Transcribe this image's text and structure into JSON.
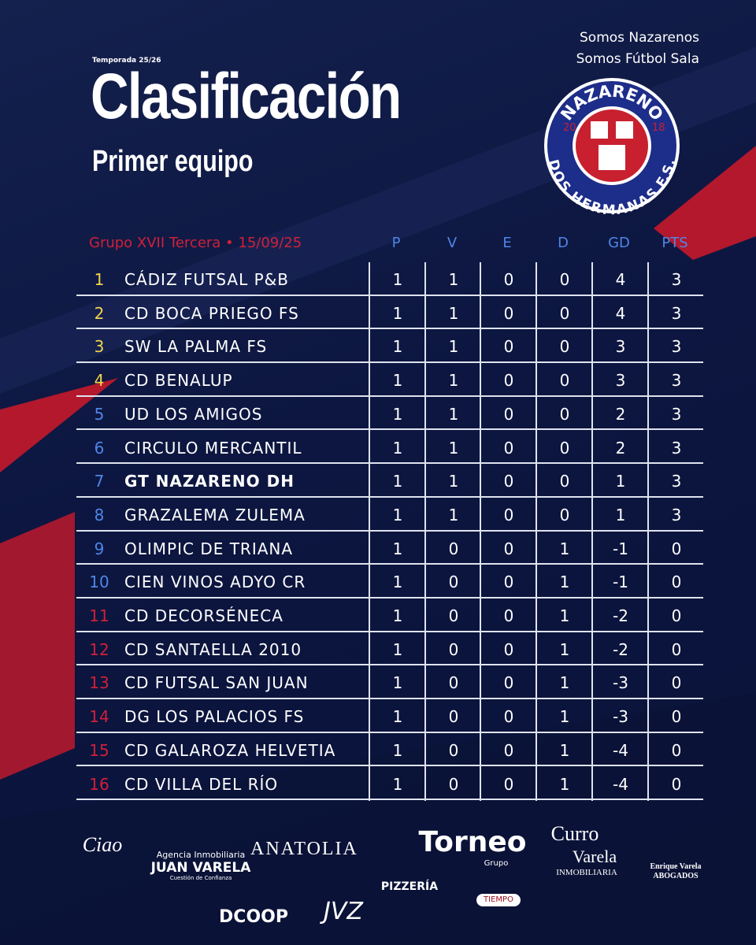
{
  "header": {
    "season": "Temporada 25/26",
    "title": "Clasificación",
    "subtitle": "Primer equipo",
    "slogan": [
      "Somos Nazarenos",
      "Somos Fútbol Sala"
    ]
  },
  "logo": {
    "top": "NAZARENO",
    "bottom": "DOS HERMANAS F.S.",
    "left": "20",
    "right": "18"
  },
  "table": {
    "caption": "Grupo XVII Tercera • 15/09/25",
    "columns": [
      "P",
      "V",
      "E",
      "D",
      "GD",
      "PTS"
    ],
    "rows": [
      [
        1,
        "CÁDIZ FUTSAL P&B",
        1,
        1,
        0,
        0,
        4,
        3
      ],
      [
        2,
        "CD BOCA PRIEGO FS",
        1,
        1,
        0,
        0,
        4,
        3
      ],
      [
        3,
        "SW LA PALMA FS",
        1,
        1,
        0,
        0,
        3,
        3
      ],
      [
        4,
        "CD BENALUP",
        1,
        1,
        0,
        0,
        3,
        3
      ],
      [
        5,
        "UD LOS AMIGOS",
        1,
        1,
        0,
        0,
        2,
        3
      ],
      [
        6,
        "CIRCULO MERCANTIL",
        1,
        1,
        0,
        0,
        2,
        3
      ],
      [
        7,
        "GT NAZARENO DH",
        1,
        1,
        0,
        0,
        1,
        3
      ],
      [
        8,
        "GRAZALEMA ZULEMA",
        1,
        1,
        0,
        0,
        1,
        3
      ],
      [
        9,
        "OLIMPIC DE TRIANA",
        1,
        0,
        0,
        1,
        -1,
        0
      ],
      [
        10,
        "CIEN VINOS ADYO CR",
        1,
        0,
        0,
        1,
        -1,
        0
      ],
      [
        11,
        "CD DECORSÉNECA",
        1,
        0,
        0,
        1,
        -2,
        0
      ],
      [
        12,
        "CD SANTAELLA 2010",
        1,
        0,
        0,
        1,
        -2,
        0
      ],
      [
        13,
        "CD FUTSAL SAN JUAN",
        1,
        0,
        0,
        1,
        -3,
        0
      ],
      [
        14,
        "DG LOS PALACIOS FS",
        1,
        0,
        0,
        1,
        -3,
        0
      ],
      [
        15,
        "CD GALAROZA HELVETIA",
        1,
        0,
        0,
        1,
        -4,
        0
      ],
      [
        16,
        "CD VILLA DEL RÍO",
        1,
        0,
        0,
        1,
        -4,
        0
      ]
    ]
  },
  "sponsors": [
    "Ciao",
    "Agencia Inmobiliaria",
    "JUAN VARELA",
    "Cuestión de Confianza",
    "ANATOLIA",
    "Torneo",
    "Grupo",
    "Curro",
    "Varela",
    "INMOBILIARIA",
    "Enrique Varela",
    "ABOGADOS",
    "DCOOP",
    "JVZ",
    "PIZZERÍA",
    "TIEMPO"
  ]
}
